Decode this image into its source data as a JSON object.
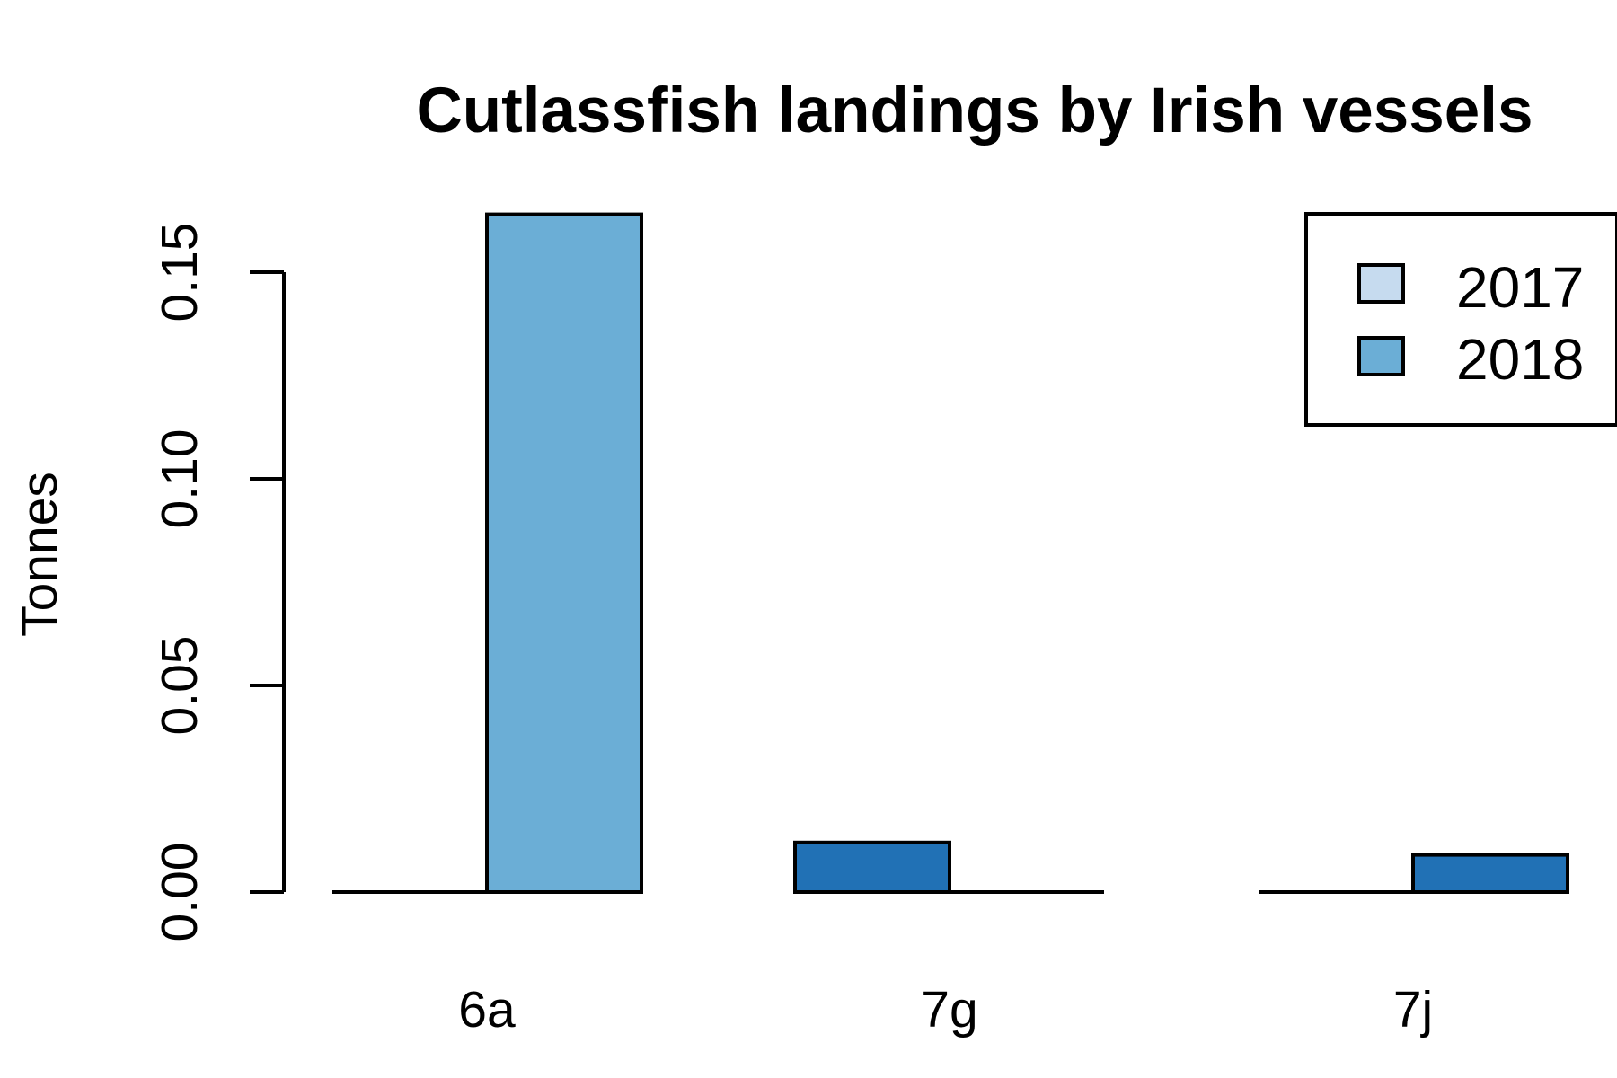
{
  "chart_data": {
    "type": "bar",
    "title": "Cutlassfish landings by Irish vessels",
    "xlabel": "",
    "ylabel": "Tonnes",
    "categories": [
      "6a",
      "7g",
      "7j"
    ],
    "ylim": [
      0,
      0.165
    ],
    "yticks": [
      "0.00",
      "0.05",
      "0.10",
      "0.15"
    ],
    "yticks_values": [
      0,
      0.05,
      0.1,
      0.15
    ],
    "bars": [
      {
        "category": "6a",
        "slot": 0,
        "value": 0.0
      },
      {
        "category": "6a",
        "slot": 1,
        "value": 0.164,
        "color": "#6baed6"
      },
      {
        "category": "7g",
        "slot": 0,
        "value": 0.012,
        "color": "#2171b5"
      },
      {
        "category": "7g",
        "slot": 1,
        "value": 0.0
      },
      {
        "category": "7j",
        "slot": 0,
        "value": 0.0
      },
      {
        "category": "7j",
        "slot": 1,
        "value": 0.009,
        "color": "#2171b5"
      }
    ],
    "legend": {
      "position": "top-right",
      "entries": [
        {
          "label": "2017",
          "color": "#c6dbef"
        },
        {
          "label": "2018",
          "color": "#6baed6"
        }
      ]
    },
    "grid": false
  }
}
